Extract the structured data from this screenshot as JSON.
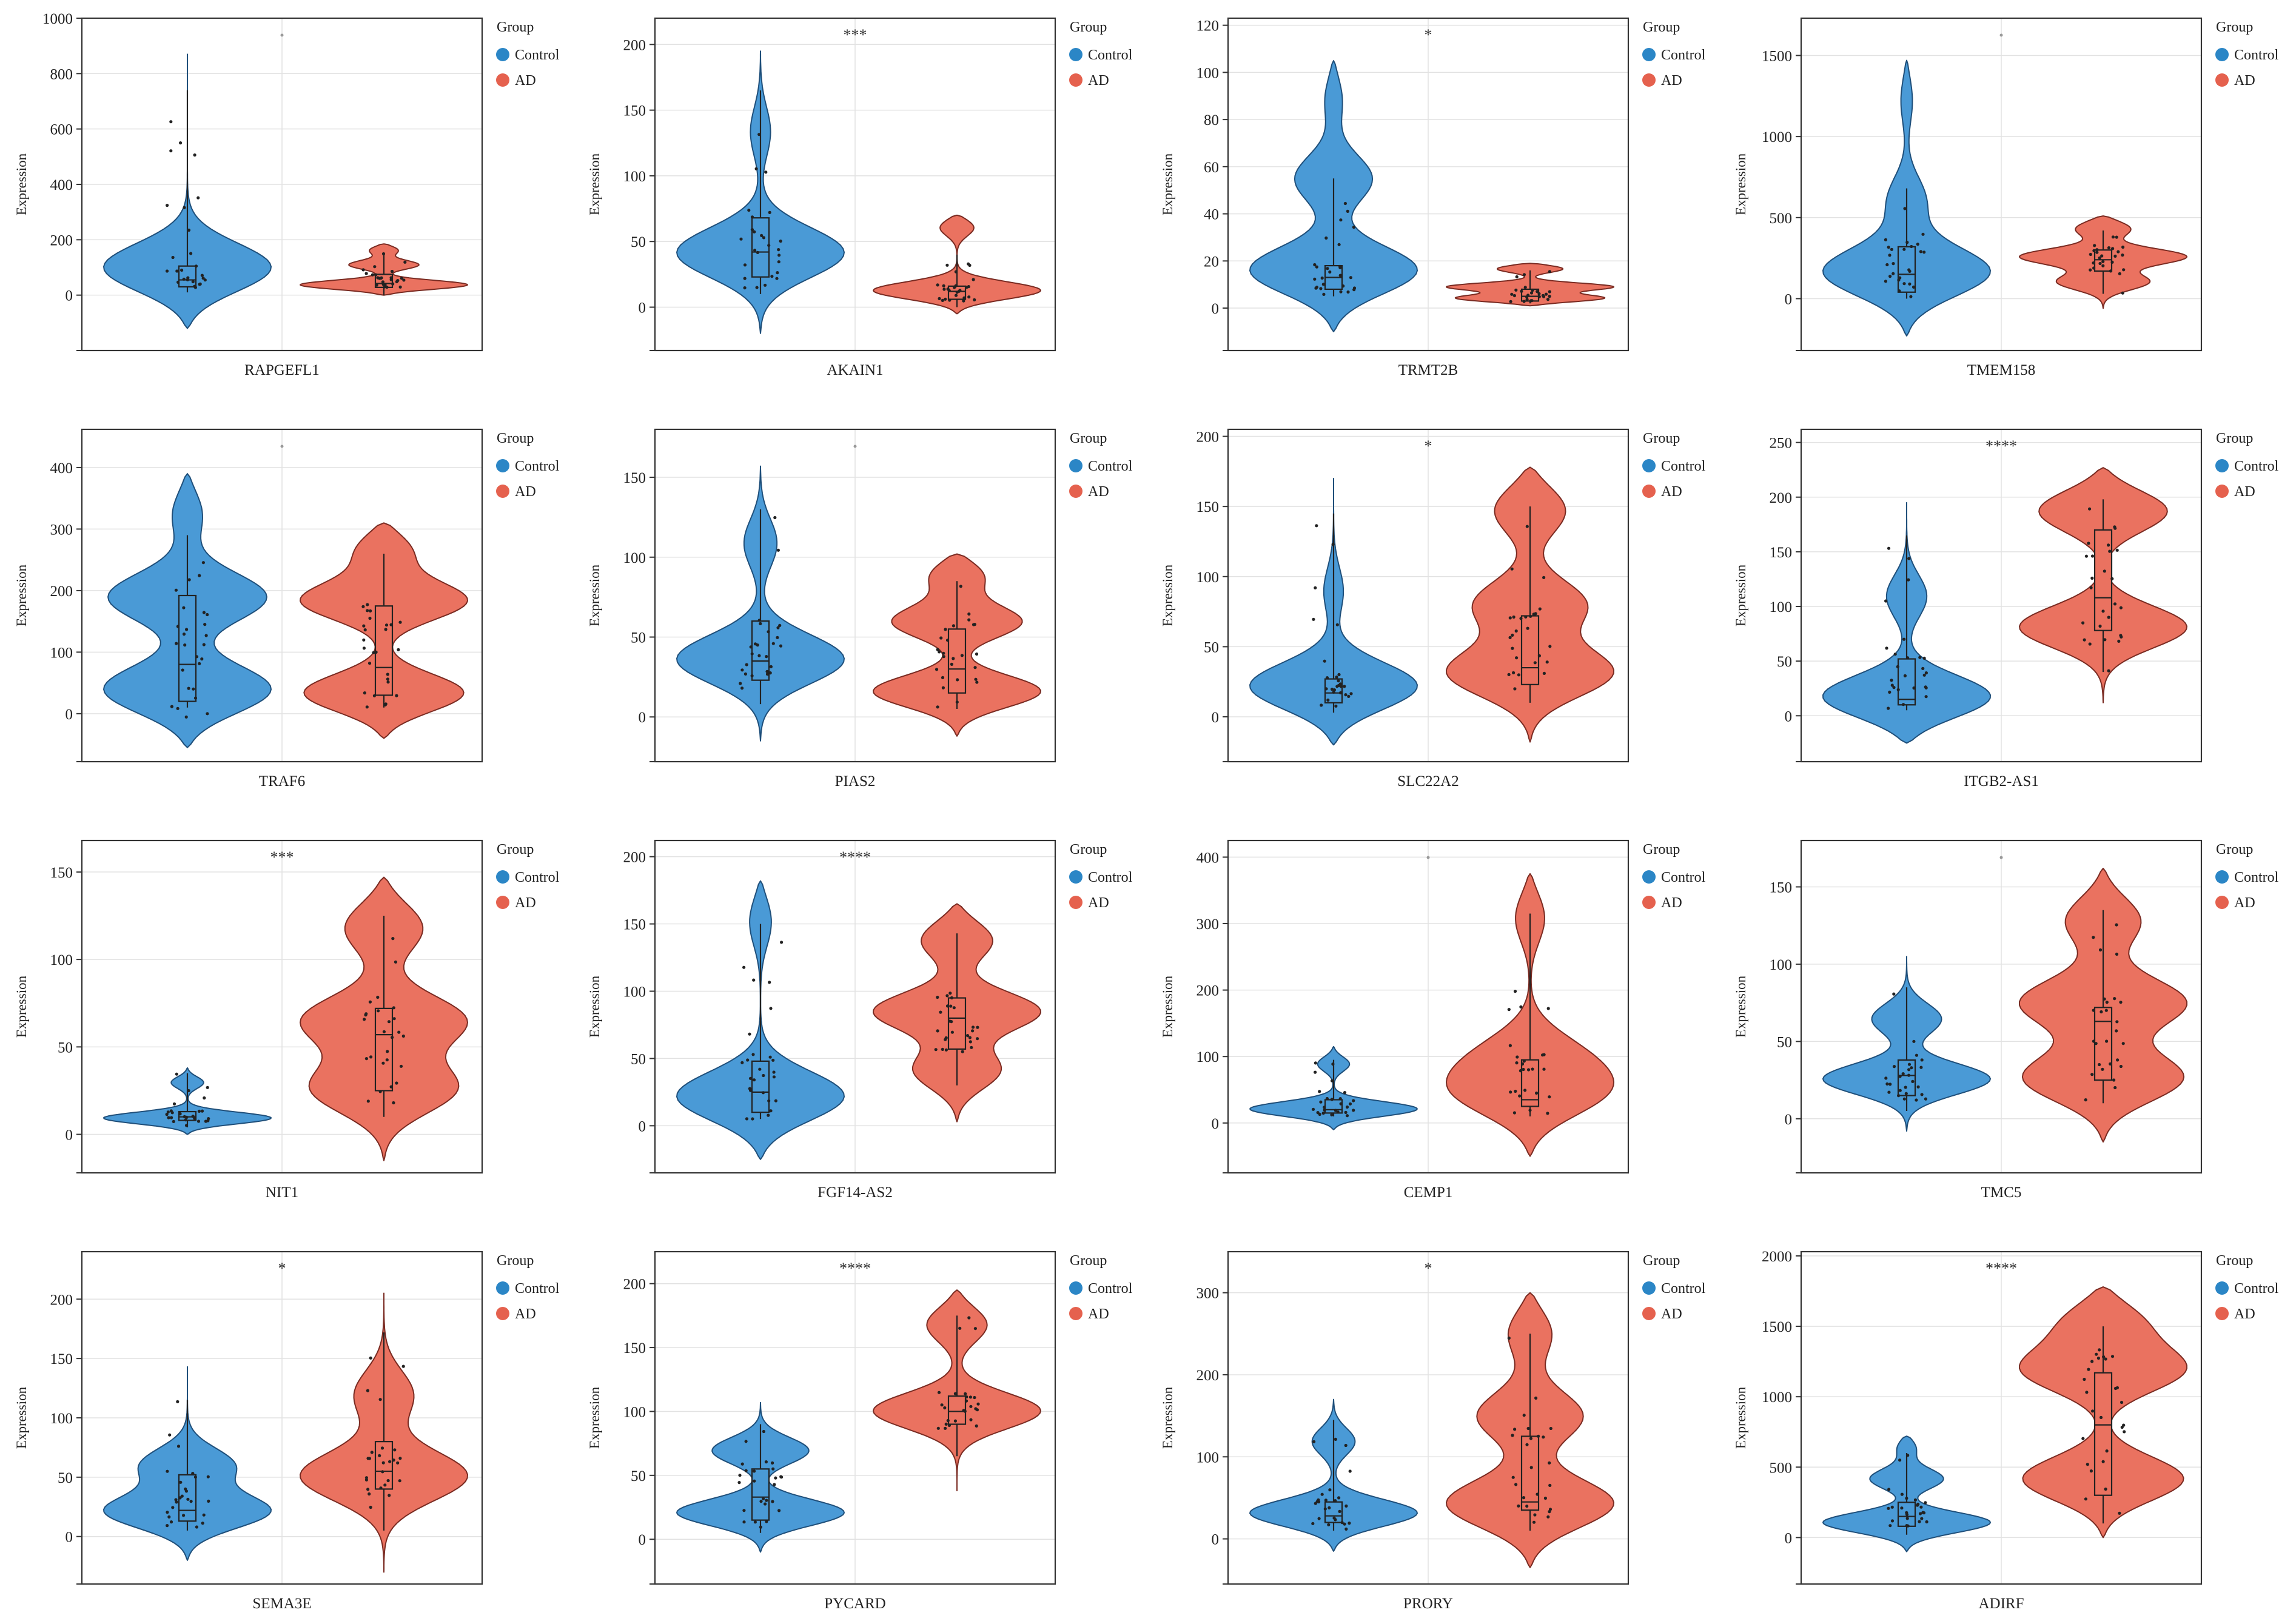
{
  "legend": {
    "title": "Group",
    "groups": [
      {
        "label": "Control",
        "color": "#2b86c6"
      },
      {
        "label": "AD",
        "color": "#e5614e"
      }
    ]
  },
  "y_label": "Expression",
  "colors": {
    "control_fill": "#4a9ad6",
    "control_stroke": "#1f4f7a",
    "ad_fill": "#ea7260",
    "ad_stroke": "#7a2b22",
    "grid": "#e2e2e2"
  },
  "chart_data": [
    {
      "type": "violin",
      "gene": "RAPGEFL1",
      "sig": "",
      "ylim": [
        -200,
        1000
      ],
      "ticks": [
        0,
        200,
        400,
        600,
        800,
        1000
      ],
      "control": {
        "range": [
          -120,
          870
        ],
        "box": [
          30,
          55,
          105
        ],
        "whisker": [
          10,
          740
        ],
        "modes": [
          [
            90,
            1.0
          ]
        ]
      },
      "ad": {
        "range": [
          0,
          185
        ],
        "box": [
          28,
          42,
          75
        ],
        "whisker": [
          0,
          150
        ],
        "modes": [
          [
            35,
            1.0
          ],
          [
            110,
            0.35
          ],
          [
            165,
            0.2
          ]
        ]
      }
    },
    {
      "type": "violin",
      "gene": "AKAIN1",
      "sig": "***",
      "ylim": [
        -33,
        220
      ],
      "ticks": [
        0,
        50,
        100,
        150,
        200
      ],
      "control": {
        "range": [
          -20,
          195
        ],
        "box": [
          23,
          42,
          68
        ],
        "whisker": [
          10,
          165
        ],
        "modes": [
          [
            40,
            1.0
          ],
          [
            135,
            0.12
          ]
        ]
      },
      "ad": {
        "range": [
          -5,
          70
        ],
        "box": [
          6,
          12,
          16
        ],
        "whisker": [
          0,
          40
        ],
        "modes": [
          [
            12,
            1.0
          ],
          [
            62,
            0.25
          ]
        ]
      }
    },
    {
      "type": "violin",
      "gene": "TRMT2B",
      "sig": "*",
      "ylim": [
        -18,
        123
      ],
      "ticks": [
        0,
        20,
        40,
        60,
        80,
        100,
        120
      ],
      "control": {
        "range": [
          -10,
          105
        ],
        "box": [
          8,
          13,
          18
        ],
        "whisker": [
          5,
          55
        ],
        "modes": [
          [
            15,
            1.0
          ],
          [
            55,
            0.4
          ],
          [
            90,
            0.12
          ]
        ]
      },
      "ad": {
        "range": [
          1,
          19
        ],
        "box": [
          3,
          5,
          8
        ],
        "whisker": [
          2,
          16
        ],
        "modes": [
          [
            4,
            1.0
          ],
          [
            9,
            0.9
          ],
          [
            17,
            0.5
          ]
        ]
      }
    },
    {
      "type": "violin",
      "gene": "TMEM158",
      "sig": "",
      "ylim": [
        -320,
        1730
      ],
      "ticks": [
        0,
        500,
        1000,
        1500
      ],
      "control": {
        "range": [
          -230,
          1470
        ],
        "box": [
          40,
          150,
          320
        ],
        "whisker": [
          0,
          680
        ],
        "modes": [
          [
            150,
            1.0
          ],
          [
            600,
            0.2
          ],
          [
            1250,
            0.08
          ]
        ]
      },
      "ad": {
        "range": [
          -60,
          510
        ],
        "box": [
          170,
          240,
          300
        ],
        "whisker": [
          30,
          420
        ],
        "modes": [
          [
            100,
            0.6
          ],
          [
            260,
            1.0
          ],
          [
            440,
            0.45
          ]
        ]
      }
    },
    {
      "type": "violin",
      "gene": "TRAF6",
      "sig": "",
      "ylim": [
        -78,
        462
      ],
      "ticks": [
        0,
        100,
        200,
        300,
        400
      ],
      "control": {
        "range": [
          -55,
          390
        ],
        "box": [
          20,
          80,
          192
        ],
        "whisker": [
          10,
          290
        ],
        "modes": [
          [
            35,
            1.0
          ],
          [
            190,
            0.8
          ],
          [
            330,
            0.2
          ]
        ]
      },
      "ad": {
        "range": [
          -40,
          310
        ],
        "box": [
          30,
          75,
          175
        ],
        "whisker": [
          10,
          260
        ],
        "modes": [
          [
            30,
            1.0
          ],
          [
            185,
            0.9
          ],
          [
            270,
            0.4
          ]
        ]
      }
    },
    {
      "type": "violin",
      "gene": "PIAS2",
      "sig": "",
      "ylim": [
        -28,
        180
      ],
      "ticks": [
        0,
        50,
        100,
        150
      ],
      "control": {
        "range": [
          -15,
          157
        ],
        "box": [
          23,
          35,
          60
        ],
        "whisker": [
          8,
          130
        ],
        "modes": [
          [
            35,
            1.0
          ],
          [
            110,
            0.2
          ]
        ]
      },
      "ad": {
        "range": [
          -12,
          102
        ],
        "box": [
          15,
          30,
          55
        ],
        "whisker": [
          5,
          85
        ],
        "modes": [
          [
            15,
            1.0
          ],
          [
            60,
            0.7
          ],
          [
            90,
            0.4
          ]
        ]
      }
    },
    {
      "type": "violin",
      "gene": "SLC22A2",
      "sig": "*",
      "ylim": [
        -32,
        205
      ],
      "ticks": [
        0,
        50,
        100,
        150,
        200
      ],
      "control": {
        "range": [
          -20,
          170
        ],
        "box": [
          10,
          17,
          27
        ],
        "whisker": [
          3,
          145
        ],
        "modes": [
          [
            20,
            1.0
          ],
          [
            90,
            0.1
          ]
        ]
      },
      "ad": {
        "range": [
          -18,
          178
        ],
        "box": [
          23,
          35,
          72
        ],
        "whisker": [
          10,
          150
        ],
        "modes": [
          [
            30,
            1.0
          ],
          [
            80,
            0.6
          ],
          [
            150,
            0.5
          ]
        ]
      }
    },
    {
      "type": "violin",
      "gene": "ITGB2-AS1",
      "sig": "****",
      "ylim": [
        -42,
        262
      ],
      "ticks": [
        0,
        50,
        100,
        150,
        200,
        250
      ],
      "control": {
        "range": [
          -25,
          195
        ],
        "box": [
          10,
          15,
          52
        ],
        "whisker": [
          5,
          165
        ],
        "modes": [
          [
            15,
            1.0
          ],
          [
            110,
            0.2
          ]
        ]
      },
      "ad": {
        "range": [
          12,
          227
        ],
        "box": [
          78,
          108,
          170
        ],
        "whisker": [
          40,
          198
        ],
        "modes": [
          [
            80,
            1.0
          ],
          [
            190,
            0.9
          ]
        ]
      }
    },
    {
      "type": "violin",
      "gene": "NIT1",
      "sig": "***",
      "ylim": [
        -22,
        168
      ],
      "ticks": [
        0,
        50,
        100,
        150
      ],
      "control": {
        "range": [
          0,
          38
        ],
        "box": [
          8,
          10,
          13
        ],
        "whisker": [
          4,
          35
        ],
        "modes": [
          [
            9,
            1.0
          ],
          [
            30,
            0.2
          ]
        ]
      },
      "ad": {
        "range": [
          -15,
          147
        ],
        "box": [
          25,
          57,
          72
        ],
        "whisker": [
          10,
          125
        ],
        "modes": [
          [
            25,
            1.0
          ],
          [
            65,
            1.0
          ],
          [
            120,
            0.6
          ]
        ]
      }
    },
    {
      "type": "violin",
      "gene": "FGF14-AS2",
      "sig": "****",
      "ylim": [
        -35,
        212
      ],
      "ticks": [
        0,
        50,
        100,
        150,
        200
      ],
      "control": {
        "range": [
          -25,
          182
        ],
        "box": [
          10,
          25,
          48
        ],
        "whisker": [
          5,
          150
        ],
        "modes": [
          [
            20,
            1.0
          ],
          [
            155,
            0.15
          ]
        ]
      },
      "ad": {
        "range": [
          3,
          165
        ],
        "box": [
          57,
          80,
          95
        ],
        "whisker": [
          30,
          143
        ],
        "modes": [
          [
            40,
            0.6
          ],
          [
            85,
            1.0
          ],
          [
            140,
            0.55
          ]
        ]
      }
    },
    {
      "type": "violin",
      "gene": "CEMP1",
      "sig": "",
      "ylim": [
        -75,
        425
      ],
      "ticks": [
        0,
        100,
        200,
        300,
        400
      ],
      "control": {
        "range": [
          -10,
          115
        ],
        "box": [
          15,
          20,
          35
        ],
        "whisker": [
          10,
          95
        ],
        "modes": [
          [
            20,
            1.0
          ],
          [
            90,
            0.2
          ]
        ]
      },
      "ad": {
        "range": [
          -50,
          375
        ],
        "box": [
          25,
          35,
          95
        ],
        "whisker": [
          10,
          315
        ],
        "modes": [
          [
            40,
            1.0
          ],
          [
            100,
            0.6
          ],
          [
            315,
            0.25
          ]
        ]
      }
    },
    {
      "type": "violin",
      "gene": "TMC5",
      "sig": "",
      "ylim": [
        -35,
        180
      ],
      "ticks": [
        0,
        50,
        100,
        150
      ],
      "control": {
        "range": [
          -8,
          105
        ],
        "box": [
          15,
          28,
          38
        ],
        "whisker": [
          5,
          85
        ],
        "modes": [
          [
            25,
            1.0
          ],
          [
            65,
            0.4
          ]
        ]
      },
      "ad": {
        "range": [
          -15,
          162
        ],
        "box": [
          25,
          63,
          72
        ],
        "whisker": [
          10,
          135
        ],
        "modes": [
          [
            25,
            1.0
          ],
          [
            75,
            0.9
          ],
          [
            130,
            0.5
          ]
        ]
      }
    },
    {
      "type": "violin",
      "gene": "SEMA3E",
      "sig": "*",
      "ylim": [
        -40,
        240
      ],
      "ticks": [
        0,
        50,
        100,
        150,
        200
      ],
      "control": {
        "range": [
          -20,
          143
        ],
        "box": [
          13,
          22,
          52
        ],
        "whisker": [
          5,
          115
        ],
        "modes": [
          [
            20,
            1.0
          ],
          [
            60,
            0.5
          ]
        ]
      },
      "ad": {
        "range": [
          -30,
          205
        ],
        "box": [
          40,
          55,
          80
        ],
        "whisker": [
          5,
          172
        ],
        "modes": [
          [
            50,
            1.0
          ],
          [
            120,
            0.35
          ]
        ]
      }
    },
    {
      "type": "violin",
      "gene": "PYCARD",
      "sig": "****",
      "ylim": [
        -35,
        225
      ],
      "ticks": [
        0,
        50,
        100,
        150,
        200
      ],
      "control": {
        "range": [
          -10,
          107
        ],
        "box": [
          15,
          33,
          55
        ],
        "whisker": [
          5,
          90
        ],
        "modes": [
          [
            20,
            1.0
          ],
          [
            70,
            0.55
          ]
        ]
      },
      "ad": {
        "range": [
          38,
          195
        ],
        "box": [
          90,
          100,
          112
        ],
        "whisker": [
          65,
          175
        ],
        "modes": [
          [
            100,
            1.0
          ],
          [
            170,
            0.45
          ]
        ]
      }
    },
    {
      "type": "violin",
      "gene": "PRORY",
      "sig": "*",
      "ylim": [
        -55,
        350
      ],
      "ticks": [
        0,
        100,
        200,
        300
      ],
      "control": {
        "range": [
          -15,
          170
        ],
        "box": [
          20,
          28,
          45
        ],
        "whisker": [
          10,
          145
        ],
        "modes": [
          [
            30,
            1.0
          ],
          [
            120,
            0.25
          ]
        ]
      },
      "ad": {
        "range": [
          -35,
          300
        ],
        "box": [
          35,
          45,
          125
        ],
        "whisker": [
          10,
          250
        ],
        "modes": [
          [
            40,
            1.0
          ],
          [
            150,
            0.55
          ],
          [
            255,
            0.3
          ]
        ]
      }
    },
    {
      "type": "violin",
      "gene": "ADIRF",
      "sig": "****",
      "ylim": [
        -330,
        2030
      ],
      "ticks": [
        0,
        500,
        1000,
        1500,
        2000
      ],
      "control": {
        "range": [
          -100,
          720
        ],
        "box": [
          80,
          150,
          250
        ],
        "whisker": [
          20,
          600
        ],
        "modes": [
          [
            100,
            1.0
          ],
          [
            420,
            0.4
          ],
          [
            650,
            0.15
          ]
        ]
      },
      "ad": {
        "range": [
          0,
          1780
        ],
        "box": [
          300,
          800,
          1170
        ],
        "whisker": [
          100,
          1500
        ],
        "modes": [
          [
            400,
            1.0
          ],
          [
            1200,
            0.9
          ],
          [
            1550,
            0.55
          ]
        ]
      }
    }
  ]
}
